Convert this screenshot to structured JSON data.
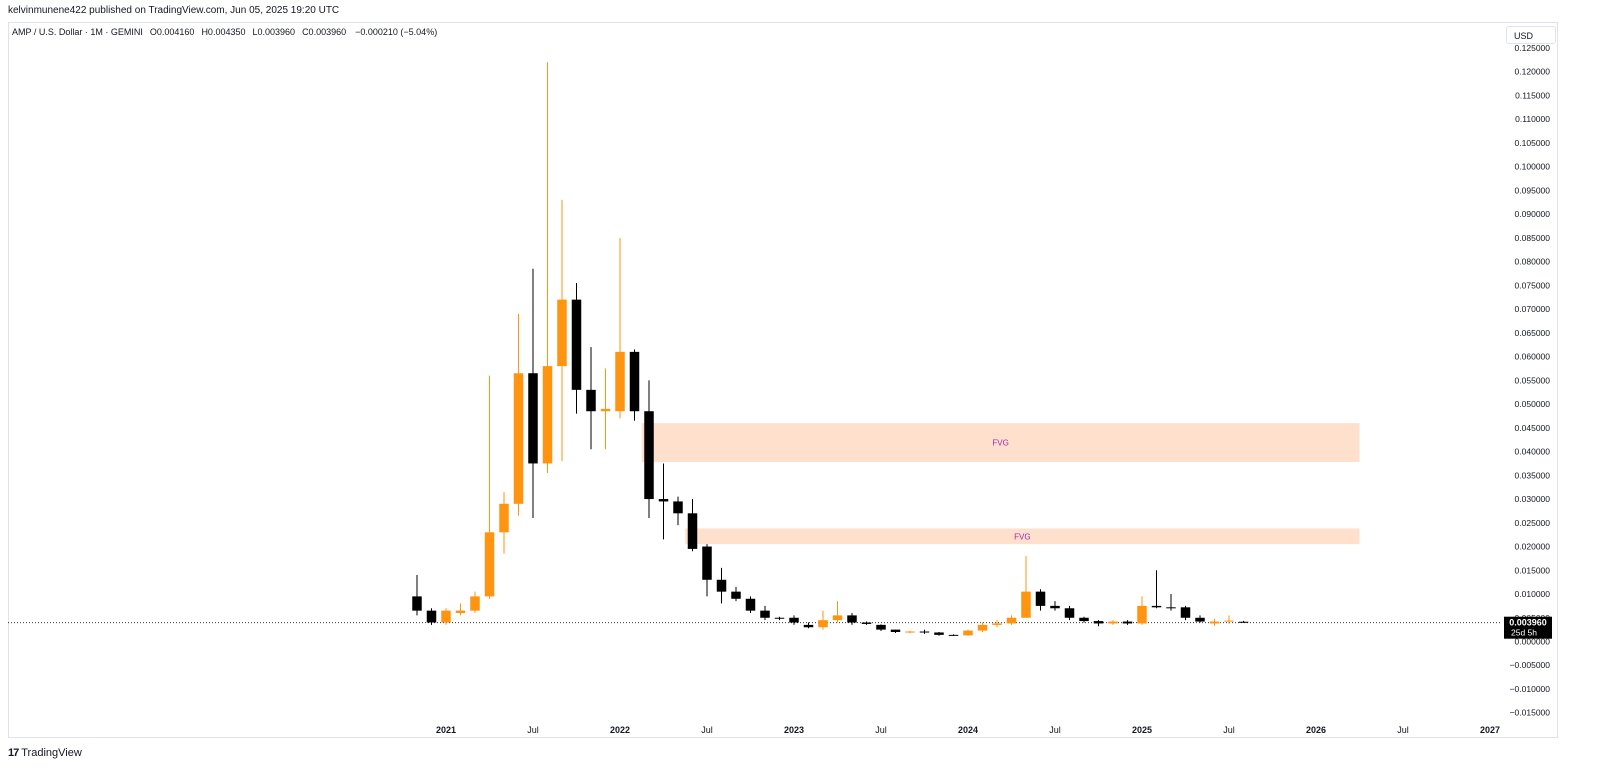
{
  "header": {
    "published_line": "kelvinmunene422 published on TradingView.com, Jun 05, 2025 19:20 UTC"
  },
  "legend": {
    "symbol": "AMP / U.S. Dollar · 1M · GEMINI",
    "open": "O0.004160",
    "high": "H0.004350",
    "low": "L0.003960",
    "close": "C0.003960",
    "change": "−0.000210 (−5.04%)"
  },
  "currency_button": "USD",
  "footer": {
    "brand": "TradingView",
    "mark": "17"
  },
  "colors": {
    "up": "#ff9411",
    "down": "#000000",
    "fvg_fill": "#ffe0cc",
    "fvg_text": "#9c27b0",
    "price_tag": "#000000"
  },
  "chart_data": {
    "type": "candlestick",
    "symbol": "AMP/USD",
    "interval": "1M",
    "exchange": "GEMINI",
    "y_axis": {
      "min": -0.015,
      "max": 0.125,
      "ticks": [
        "0.125000",
        "0.120000",
        "0.115000",
        "0.110000",
        "0.105000",
        "0.100000",
        "0.095000",
        "0.090000",
        "0.085000",
        "0.080000",
        "0.075000",
        "0.070000",
        "0.065000",
        "0.060000",
        "0.055000",
        "0.050000",
        "0.045000",
        "0.040000",
        "0.035000",
        "0.030000",
        "0.025000",
        "0.020000",
        "0.015000",
        "0.010000",
        "0.005000",
        "0.000000",
        "−0.005000",
        "−0.010000",
        "−0.015000"
      ]
    },
    "x_axis": {
      "labels": [
        {
          "label": "2021",
          "month_index": 0
        },
        {
          "label": "Jul",
          "month_index": 6
        },
        {
          "label": "2022",
          "month_index": 12
        },
        {
          "label": "Jul",
          "month_index": 18
        },
        {
          "label": "2023",
          "month_index": 24
        },
        {
          "label": "Jul",
          "month_index": 30
        },
        {
          "label": "2024",
          "month_index": 36
        },
        {
          "label": "Jul",
          "month_index": 42
        },
        {
          "label": "2025",
          "month_index": 48
        },
        {
          "label": "Jul",
          "month_index": 54
        },
        {
          "label": "2026",
          "month_index": 60
        },
        {
          "label": "Jul",
          "month_index": 66
        },
        {
          "label": "2027",
          "month_index": 72
        }
      ]
    },
    "candles": [
      {
        "m": -2,
        "o": 0.0095,
        "h": 0.014,
        "l": 0.0055,
        "c": 0.0065
      },
      {
        "m": -1,
        "o": 0.0065,
        "h": 0.007,
        "l": 0.0035,
        "c": 0.004
      },
      {
        "m": 0,
        "o": 0.004,
        "h": 0.007,
        "l": 0.0035,
        "c": 0.0065
      },
      {
        "m": 1,
        "o": 0.006,
        "h": 0.008,
        "l": 0.0055,
        "c": 0.0065
      },
      {
        "m": 2,
        "o": 0.0065,
        "h": 0.0105,
        "l": 0.006,
        "c": 0.0095
      },
      {
        "m": 3,
        "o": 0.0095,
        "h": 0.056,
        "l": 0.009,
        "c": 0.023
      },
      {
        "m": 4,
        "o": 0.023,
        "h": 0.0315,
        "l": 0.0185,
        "c": 0.029
      },
      {
        "m": 5,
        "o": 0.029,
        "h": 0.069,
        "l": 0.0265,
        "c": 0.0565
      },
      {
        "m": 6,
        "o": 0.0565,
        "h": 0.0785,
        "l": 0.026,
        "c": 0.0375
      },
      {
        "m": 7,
        "o": 0.0375,
        "h": 0.122,
        "l": 0.0355,
        "c": 0.058
      },
      {
        "m": 8,
        "o": 0.058,
        "h": 0.093,
        "l": 0.038,
        "c": 0.072
      },
      {
        "m": 9,
        "o": 0.072,
        "h": 0.0755,
        "l": 0.048,
        "c": 0.053
      },
      {
        "m": 10,
        "o": 0.053,
        "h": 0.062,
        "l": 0.0405,
        "c": 0.0485
      },
      {
        "m": 11,
        "o": 0.0485,
        "h": 0.0575,
        "l": 0.0405,
        "c": 0.049
      },
      {
        "m": 12,
        "o": 0.0485,
        "h": 0.085,
        "l": 0.047,
        "c": 0.061
      },
      {
        "m": 13,
        "o": 0.061,
        "h": 0.0615,
        "l": 0.0465,
        "c": 0.0485
      },
      {
        "m": 14,
        "o": 0.0485,
        "h": 0.055,
        "l": 0.026,
        "c": 0.03
      },
      {
        "m": 15,
        "o": 0.03,
        "h": 0.0375,
        "l": 0.0215,
        "c": 0.0295
      },
      {
        "m": 16,
        "o": 0.0295,
        "h": 0.0305,
        "l": 0.0245,
        "c": 0.027
      },
      {
        "m": 17,
        "o": 0.027,
        "h": 0.03,
        "l": 0.019,
        "c": 0.0195
      },
      {
        "m": 18,
        "o": 0.02,
        "h": 0.0205,
        "l": 0.0095,
        "c": 0.013
      },
      {
        "m": 19,
        "o": 0.013,
        "h": 0.0155,
        "l": 0.008,
        "c": 0.0105
      },
      {
        "m": 20,
        "o": 0.0105,
        "h": 0.0115,
        "l": 0.0085,
        "c": 0.009
      },
      {
        "m": 21,
        "o": 0.009,
        "h": 0.0095,
        "l": 0.006,
        "c": 0.0065
      },
      {
        "m": 22,
        "o": 0.0065,
        "h": 0.0075,
        "l": 0.0045,
        "c": 0.005
      },
      {
        "m": 23,
        "o": 0.005,
        "h": 0.0052,
        "l": 0.0045,
        "c": 0.0048
      },
      {
        "m": 24,
        "o": 0.005,
        "h": 0.0055,
        "l": 0.0035,
        "c": 0.004
      },
      {
        "m": 25,
        "o": 0.0035,
        "h": 0.004,
        "l": 0.0028,
        "c": 0.003
      },
      {
        "m": 26,
        "o": 0.003,
        "h": 0.0065,
        "l": 0.0025,
        "c": 0.0045
      },
      {
        "m": 27,
        "o": 0.0045,
        "h": 0.0085,
        "l": 0.004,
        "c": 0.0055
      },
      {
        "m": 28,
        "o": 0.0055,
        "h": 0.006,
        "l": 0.0035,
        "c": 0.004
      },
      {
        "m": 29,
        "o": 0.004,
        "h": 0.0042,
        "l": 0.0035,
        "c": 0.0037
      },
      {
        "m": 30,
        "o": 0.0035,
        "h": 0.0036,
        "l": 0.0022,
        "c": 0.0025
      },
      {
        "m": 31,
        "o": 0.0025,
        "h": 0.0025,
        "l": 0.0018,
        "c": 0.002
      },
      {
        "m": 32,
        "o": 0.002,
        "h": 0.0023,
        "l": 0.0017,
        "c": 0.0021
      },
      {
        "m": 33,
        "o": 0.0021,
        "h": 0.0025,
        "l": 0.0016,
        "c": 0.0019
      },
      {
        "m": 34,
        "o": 0.0019,
        "h": 0.002,
        "l": 0.0012,
        "c": 0.0014
      },
      {
        "m": 35,
        "o": 0.0014,
        "h": 0.0015,
        "l": 0.0012,
        "c": 0.0013
      },
      {
        "m": 36,
        "o": 0.0013,
        "h": 0.0025,
        "l": 0.0012,
        "c": 0.0023
      },
      {
        "m": 37,
        "o": 0.0023,
        "h": 0.004,
        "l": 0.002,
        "c": 0.0035
      },
      {
        "m": 38,
        "o": 0.0035,
        "h": 0.0045,
        "l": 0.003,
        "c": 0.0038
      },
      {
        "m": 39,
        "o": 0.0038,
        "h": 0.0055,
        "l": 0.0035,
        "c": 0.005
      },
      {
        "m": 40,
        "o": 0.005,
        "h": 0.018,
        "l": 0.005,
        "c": 0.0105
      },
      {
        "m": 41,
        "o": 0.0105,
        "h": 0.011,
        "l": 0.0065,
        "c": 0.0075
      },
      {
        "m": 42,
        "o": 0.0075,
        "h": 0.0085,
        "l": 0.0065,
        "c": 0.007
      },
      {
        "m": 43,
        "o": 0.007,
        "h": 0.0075,
        "l": 0.0045,
        "c": 0.005
      },
      {
        "m": 44,
        "o": 0.005,
        "h": 0.0052,
        "l": 0.004,
        "c": 0.0043
      },
      {
        "m": 45,
        "o": 0.0043,
        "h": 0.0045,
        "l": 0.0032,
        "c": 0.0038
      },
      {
        "m": 46,
        "o": 0.0038,
        "h": 0.0045,
        "l": 0.0035,
        "c": 0.0042
      },
      {
        "m": 47,
        "o": 0.0042,
        "h": 0.0045,
        "l": 0.0035,
        "c": 0.0038
      },
      {
        "m": 48,
        "o": 0.0038,
        "h": 0.0095,
        "l": 0.0035,
        "c": 0.0075
      },
      {
        "m": 49,
        "o": 0.0075,
        "h": 0.015,
        "l": 0.007,
        "c": 0.0072
      },
      {
        "m": 50,
        "o": 0.0072,
        "h": 0.01,
        "l": 0.0065,
        "c": 0.007
      },
      {
        "m": 51,
        "o": 0.0072,
        "h": 0.0075,
        "l": 0.0045,
        "c": 0.005
      },
      {
        "m": 52,
        "o": 0.005,
        "h": 0.0055,
        "l": 0.004,
        "c": 0.0042
      },
      {
        "m": 53,
        "o": 0.0038,
        "h": 0.0048,
        "l": 0.0033,
        "c": 0.0042
      },
      {
        "m": 54,
        "o": 0.0042,
        "h": 0.0055,
        "l": 0.0037,
        "c": 0.0044
      },
      {
        "m": 55,
        "o": 0.00416,
        "h": 0.00435,
        "l": 0.00396,
        "c": 0.00396
      }
    ],
    "zones": [
      {
        "label": "FVG",
        "y_top": 0.046,
        "y_bottom": 0.0378,
        "m_start": 13.5,
        "m_end": 63
      },
      {
        "label": "FVG",
        "y_top": 0.0238,
        "y_bottom": 0.0205,
        "m_start": 16.5,
        "m_end": 63
      }
    ],
    "last_price": {
      "value": "0.003960",
      "price": 0.00396,
      "countdown": "25d 5h"
    }
  }
}
